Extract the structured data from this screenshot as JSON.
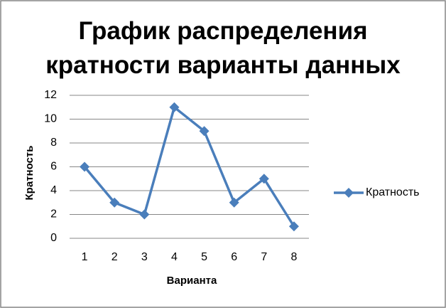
{
  "chart_data": {
    "type": "line",
    "title": "График распределения кратности варианты данных",
    "x_label": "Варианта",
    "y_label": "Кратность",
    "categories": [
      "1",
      "2",
      "3",
      "4",
      "5",
      "6",
      "7",
      "8"
    ],
    "series": [
      {
        "name": "Кратность",
        "color": "#4a7ebb",
        "values": [
          6,
          3,
          2,
          11,
          9,
          3,
          5,
          1
        ]
      }
    ],
    "ylim": [
      0,
      12
    ],
    "yticks": [
      0,
      2,
      4,
      6,
      8,
      10,
      12
    ],
    "grid": true,
    "legend": "right"
  }
}
